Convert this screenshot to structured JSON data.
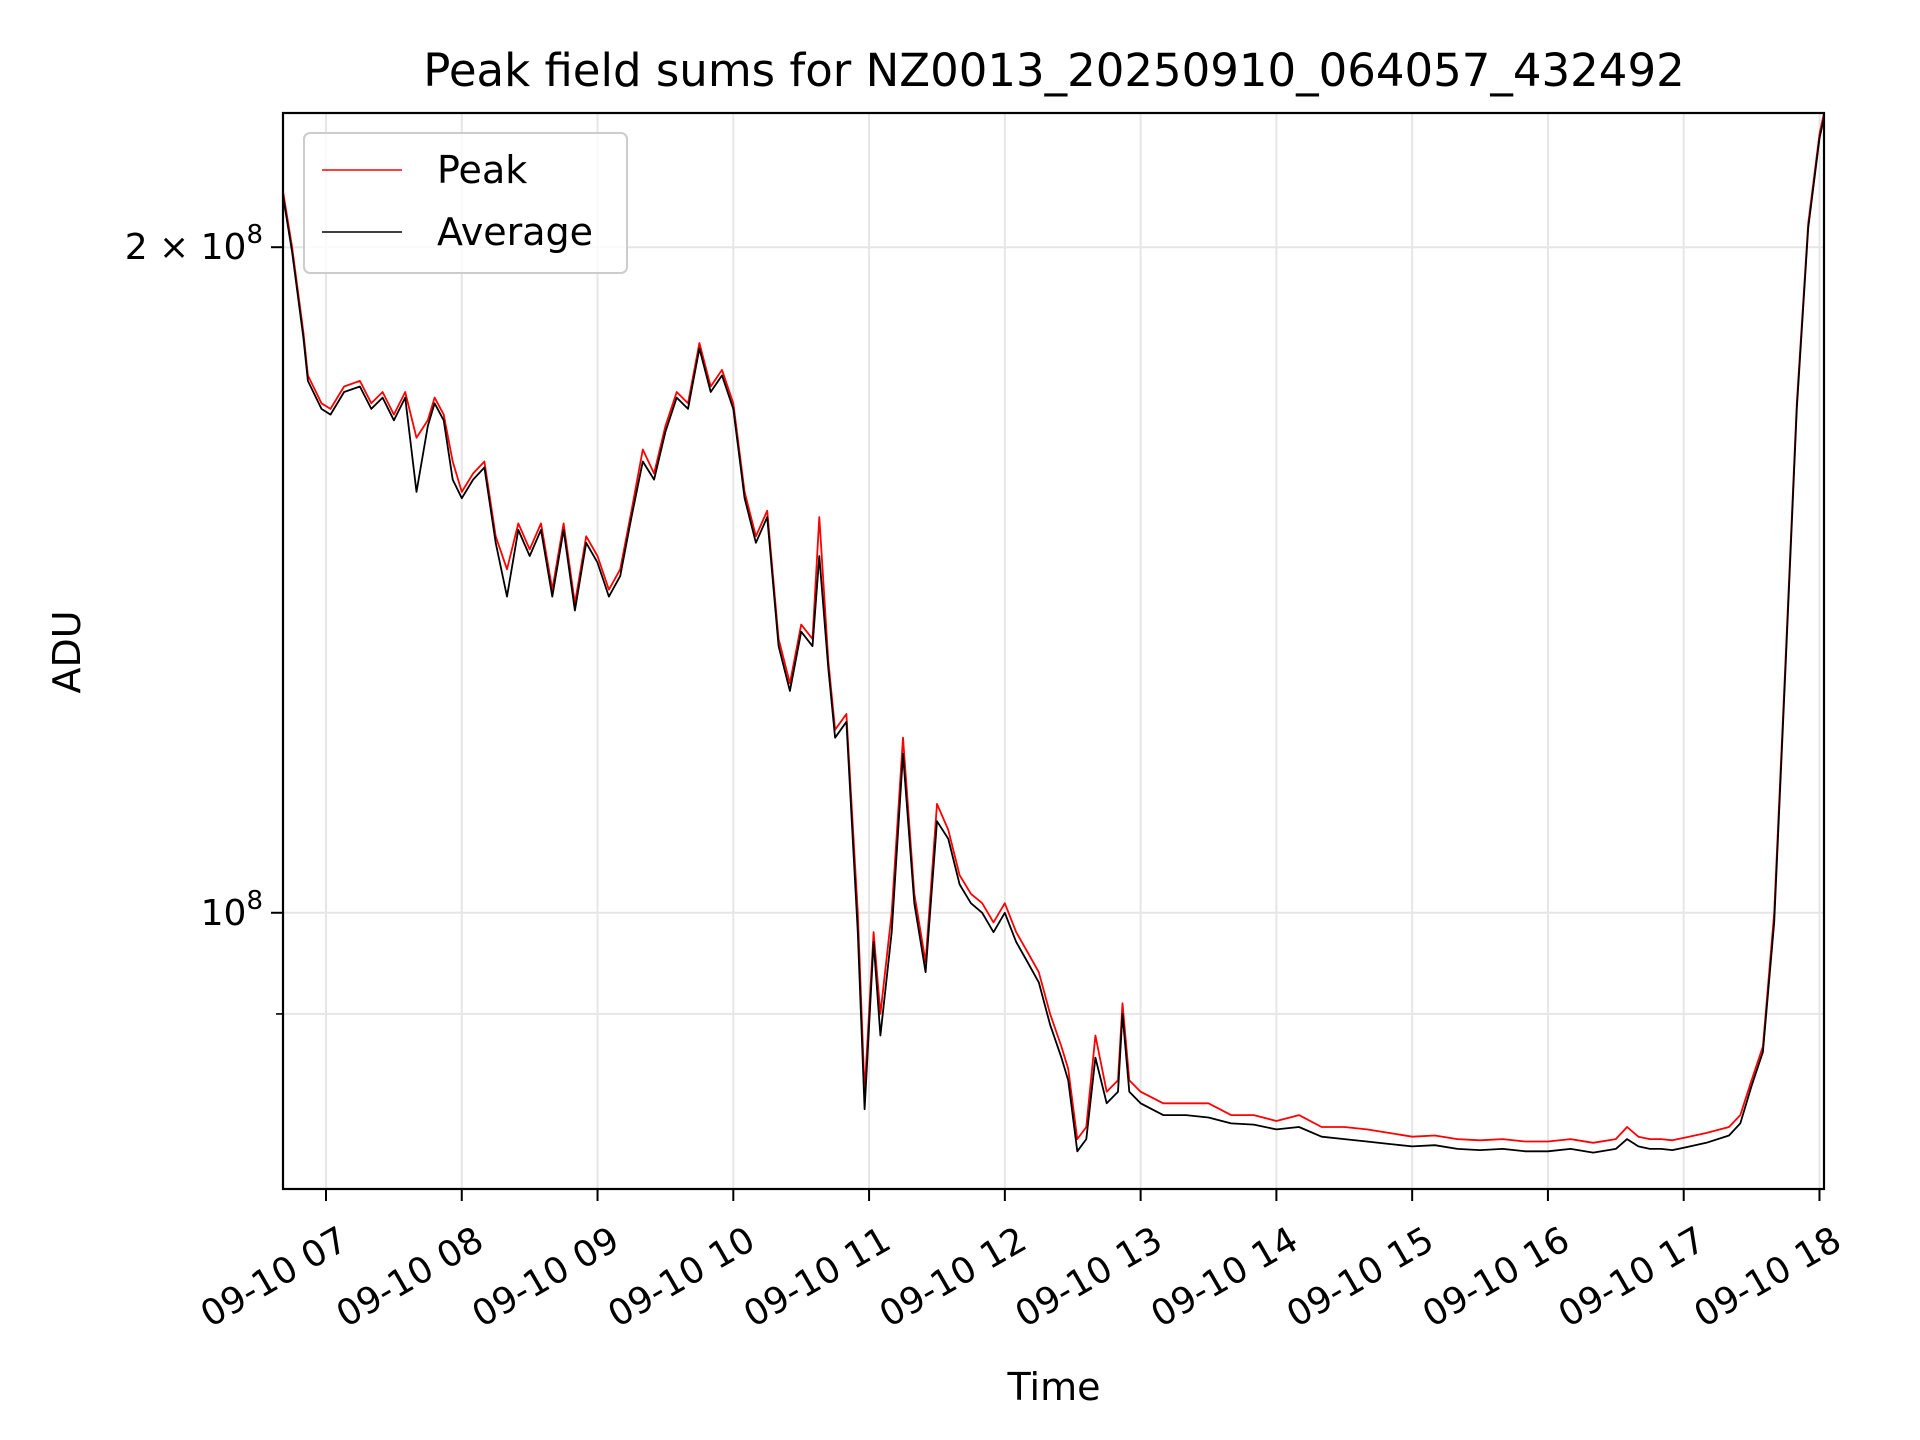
{
  "chart_data": {
    "type": "line",
    "title": "Peak field sums for NZ0013_20250910_064057_432492",
    "xlabel": "Time",
    "ylabel": "ADU",
    "yscale": "log",
    "ylim": [
      75000000,
      230000000
    ],
    "xlim": [
      "2025-09-10 06:41",
      "2025-09-10 18:02"
    ],
    "grid": true,
    "legend": "top-left",
    "x_ticks": [
      "09-10 07",
      "09-10 08",
      "09-10 09",
      "09-10 10",
      "09-10 11",
      "09-10 12",
      "09-10 13",
      "09-10 14",
      "09-10 15",
      "09-10 16",
      "09-10 17",
      "09-10 18"
    ],
    "y_ticks": [
      {
        "value": 200000000,
        "mantissa": "2",
        "times": "×",
        "base": "10",
        "exp": "8"
      },
      {
        "value": 100000000,
        "mantissa": "",
        "times": "",
        "base": "10",
        "exp": "8"
      }
    ],
    "y_minor_ticks": [
      90000000
    ],
    "x_times": [
      "06:41",
      "06:45",
      "06:50",
      "06:52",
      "06:58",
      "07:02",
      "07:08",
      "07:15",
      "07:20",
      "07:25",
      "07:30",
      "07:35",
      "07:40",
      "07:45",
      "07:48",
      "07:52",
      "07:56",
      "08:00",
      "08:05",
      "08:10",
      "08:15",
      "08:20",
      "08:25",
      "08:30",
      "08:35",
      "08:40",
      "08:45",
      "08:50",
      "08:55",
      "09:00",
      "09:05",
      "09:10",
      "09:15",
      "09:20",
      "09:25",
      "09:30",
      "09:35",
      "09:40",
      "09:45",
      "09:50",
      "09:55",
      "10:00",
      "10:05",
      "10:10",
      "10:15",
      "10:20",
      "10:25",
      "10:30",
      "10:35",
      "10:38",
      "10:42",
      "10:45",
      "10:50",
      "10:55",
      "10:58",
      "11:02",
      "11:05",
      "11:10",
      "11:15",
      "11:20",
      "11:25",
      "11:30",
      "11:35",
      "11:40",
      "11:45",
      "11:50",
      "11:55",
      "12:00",
      "12:05",
      "12:10",
      "12:15",
      "12:20",
      "12:25",
      "12:28",
      "12:32",
      "12:36",
      "12:40",
      "12:45",
      "12:50",
      "12:52",
      "12:55",
      "13:00",
      "13:10",
      "13:20",
      "13:30",
      "13:40",
      "13:50",
      "14:00",
      "14:10",
      "14:20",
      "14:30",
      "14:40",
      "14:50",
      "15:00",
      "15:10",
      "15:20",
      "15:30",
      "15:40",
      "15:50",
      "16:00",
      "16:10",
      "16:20",
      "16:30",
      "16:35",
      "16:40",
      "16:45",
      "16:50",
      "16:55",
      "17:00",
      "17:10",
      "17:20",
      "17:25",
      "17:30",
      "17:35",
      "17:40",
      "17:45",
      "17:50",
      "17:55",
      "18:00",
      "18:02"
    ],
    "series": [
      {
        "name": "Peak",
        "color": "#ff0000",
        "values": [
          212000000,
          200000000,
          183000000,
          175000000,
          170000000,
          169000000,
          173000000,
          174000000,
          170000000,
          172000000,
          168000000,
          172000000,
          164000000,
          167000000,
          171000000,
          168000000,
          160000000,
          155000000,
          158000000,
          160000000,
          148000000,
          143000000,
          150000000,
          146000000,
          150000000,
          140000000,
          150000000,
          138000000,
          148000000,
          145000000,
          140000000,
          143000000,
          152000000,
          162000000,
          158000000,
          166000000,
          172000000,
          170000000,
          181000000,
          173000000,
          176000000,
          170000000,
          155000000,
          148000000,
          152000000,
          133000000,
          127000000,
          135000000,
          133000000,
          151000000,
          130000000,
          121000000,
          123000000,
          100000000,
          83000000,
          98000000,
          90000000,
          100000000,
          120000000,
          102000000,
          95000000,
          112000000,
          109000000,
          104000000,
          102000000,
          101000000,
          99000000,
          101000000,
          98000000,
          96000000,
          94000000,
          90000000,
          87000000,
          85000000,
          79000000,
          80000000,
          88000000,
          83000000,
          84000000,
          91000000,
          84000000,
          83000000,
          82000000,
          82000000,
          82000000,
          81000000,
          81000000,
          80500000,
          81000000,
          80000000,
          80000000,
          79800000,
          79500000,
          79200000,
          79300000,
          79000000,
          78900000,
          79000000,
          78800000,
          78800000,
          79000000,
          78700000,
          79000000,
          80000000,
          79200000,
          79000000,
          79000000,
          78900000,
          79100000,
          79500000,
          80000000,
          81000000,
          84000000,
          87000000,
          100000000,
          130000000,
          170000000,
          205000000,
          225000000,
          230000000
        ]
      },
      {
        "name": "Average",
        "color": "#000000",
        "values": [
          211000000,
          199000000,
          182000000,
          174000000,
          169000000,
          168000000,
          172000000,
          173000000,
          169000000,
          171000000,
          167000000,
          171000000,
          155000000,
          166000000,
          170000000,
          167000000,
          157000000,
          154000000,
          157000000,
          159000000,
          147000000,
          139000000,
          149000000,
          145000000,
          149000000,
          139000000,
          149000000,
          137000000,
          147000000,
          144000000,
          139000000,
          142000000,
          151000000,
          160000000,
          157000000,
          165000000,
          171000000,
          169000000,
          180000000,
          172000000,
          175000000,
          169000000,
          154000000,
          147000000,
          151000000,
          132000000,
          126000000,
          134000000,
          132000000,
          145000000,
          129000000,
          120000000,
          122000000,
          98000000,
          81500000,
          97000000,
          88000000,
          98000000,
          118000000,
          101000000,
          94000000,
          110000000,
          108000000,
          103000000,
          101000000,
          100000000,
          98000000,
          100000000,
          97000000,
          95000000,
          93000000,
          89000000,
          86000000,
          84000000,
          78000000,
          79000000,
          86000000,
          82000000,
          83000000,
          90000000,
          83000000,
          82000000,
          81000000,
          81000000,
          80800000,
          80300000,
          80200000,
          79800000,
          80000000,
          79200000,
          79000000,
          78800000,
          78600000,
          78400000,
          78500000,
          78200000,
          78100000,
          78200000,
          78000000,
          78000000,
          78200000,
          77900000,
          78200000,
          79000000,
          78400000,
          78200000,
          78200000,
          78100000,
          78300000,
          78700000,
          79300000,
          80300000,
          83500000,
          86500000,
          99000000,
          129000000,
          169000000,
          204000000,
          224000000,
          229000000
        ]
      }
    ]
  }
}
